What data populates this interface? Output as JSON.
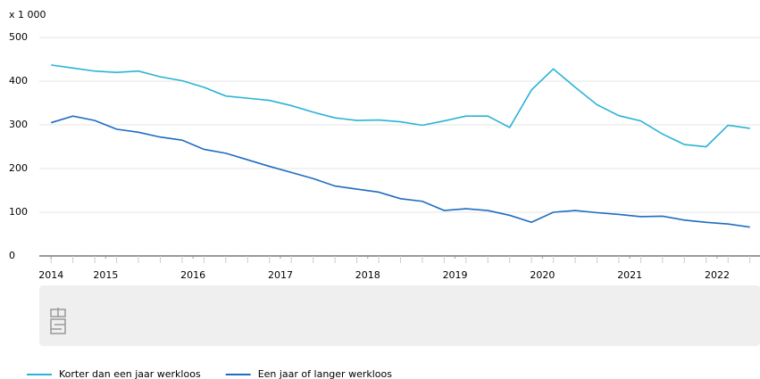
{
  "chart_data": {
    "type": "line",
    "y_label": "x 1 000",
    "x": [
      2014.875,
      2015.125,
      2015.375,
      2015.625,
      2015.875,
      2016.125,
      2016.375,
      2016.625,
      2016.875,
      2017.125,
      2017.375,
      2017.625,
      2017.875,
      2018.125,
      2018.375,
      2018.625,
      2018.875,
      2019.125,
      2019.375,
      2019.625,
      2019.875,
      2020.125,
      2020.375,
      2020.625,
      2020.875,
      2021.125,
      2021.375,
      2021.625,
      2021.875,
      2022.125,
      2022.375,
      2022.625,
      2022.875
    ],
    "series": [
      {
        "name": "Korter dan een jaar werkloos",
        "color": "#29b3d6",
        "values": [
          437,
          430,
          423,
          420,
          423,
          410,
          401,
          386,
          366,
          361,
          356,
          344,
          329,
          316,
          310,
          311,
          307,
          299,
          309,
          320,
          320,
          294,
          380,
          428,
          386,
          346,
          321,
          309,
          279,
          255,
          250,
          299,
          292
        ]
      },
      {
        "name": "Een jaar of langer werkloos",
        "color": "#1f6cc0",
        "values": [
          305,
          320,
          310,
          290,
          283,
          272,
          265,
          244,
          235,
          220,
          205,
          191,
          177,
          160,
          153,
          146,
          131,
          125,
          104,
          108,
          104,
          93,
          77,
          100,
          104,
          99,
          95,
          90,
          91,
          82,
          77,
          73,
          66
        ]
      }
    ],
    "xlim": [
      2014.74,
      2022.96
    ],
    "xticks": [
      {
        "value": 2014.875,
        "label": "2014"
      },
      {
        "value": 2015.5,
        "label": "2015"
      },
      {
        "value": 2016.5,
        "label": "2016"
      },
      {
        "value": 2017.5,
        "label": "2017"
      },
      {
        "value": 2018.5,
        "label": "2018"
      },
      {
        "value": 2019.5,
        "label": "2019"
      },
      {
        "value": 2020.5,
        "label": "2020"
      },
      {
        "value": 2021.5,
        "label": "2021"
      },
      {
        "value": 2022.5,
        "label": "2022"
      }
    ],
    "ylim": [
      0,
      500
    ],
    "yticks": [
      0,
      100,
      200,
      300,
      400,
      500
    ],
    "grid": true,
    "legend": "bottom"
  }
}
